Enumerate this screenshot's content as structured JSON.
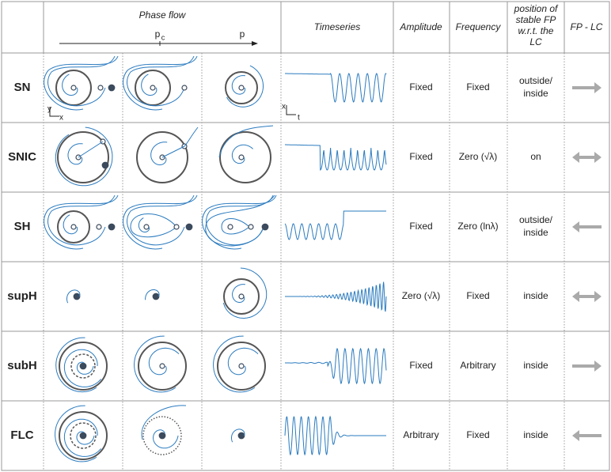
{
  "header": {
    "phase_flow": "Phase flow",
    "pc": {
      "base": "p",
      "sub": "c"
    },
    "p_end": "p",
    "timeseries": "Timeseries",
    "amplitude": "Amplitude",
    "frequency": "Frequency",
    "position": [
      "position of",
      "stable FP",
      "w.r.t. the",
      "LC"
    ],
    "fp_lc": "FP - LC"
  },
  "axes": {
    "phase_y": "y",
    "phase_x": "x",
    "time_x": "x",
    "time_t": "t"
  },
  "rows": [
    {
      "name": "SN",
      "amplitude": "Fixed",
      "frequency": "Fixed",
      "position": [
        "outside/",
        "inside"
      ],
      "arrow": "right"
    },
    {
      "name": "SNIC",
      "amplitude": "Fixed",
      "frequency": "Zero (√λ)",
      "position": [
        "on"
      ],
      "arrow": "both"
    },
    {
      "name": "SH",
      "amplitude": "Fixed",
      "frequency": "Zero (lnλ)",
      "position": [
        "outside/",
        "inside"
      ],
      "arrow": "left"
    },
    {
      "name": "supH",
      "amplitude": "Zero (√λ)",
      "frequency": "Fixed",
      "position": [
        "inside"
      ],
      "arrow": "both"
    },
    {
      "name": "subH",
      "amplitude": "Fixed",
      "frequency": "Arbitrary",
      "position": [
        "inside"
      ],
      "arrow": "right"
    },
    {
      "name": "FLC",
      "amplitude": "Arbitrary",
      "frequency": "Fixed",
      "position": [
        "inside"
      ],
      "arrow": "left"
    }
  ]
}
